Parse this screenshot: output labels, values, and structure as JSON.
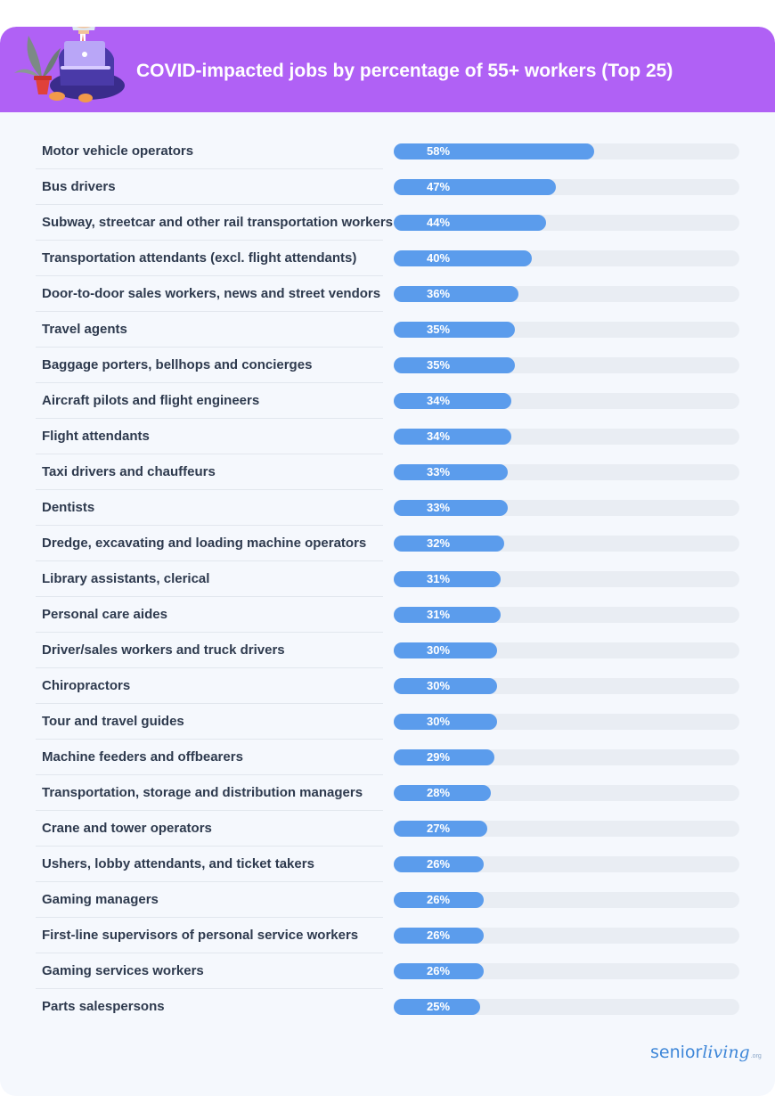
{
  "header": {
    "title": "COVID-impacted jobs by percentage of 55+ workers (Top 25)"
  },
  "chart_data": {
    "type": "bar",
    "orientation": "horizontal",
    "title": "COVID-impacted jobs by percentage of 55+ workers (Top 25)",
    "xlim": [
      0,
      100
    ],
    "categories": [
      "Motor vehicle operators",
      "Bus drivers",
      "Subway, streetcar and other rail transportation workers",
      "Transportation attendants (excl. flight attendants)",
      "Door-to-door sales workers, news and street vendors",
      "Travel agents",
      "Baggage porters, bellhops and concierges",
      "Aircraft pilots and flight engineers",
      "Flight attendants",
      "Taxi drivers and chauffeurs",
      "Dentists",
      "Dredge, excavating and loading machine operators",
      "Library assistants, clerical",
      "Personal care aides",
      "Driver/sales workers and truck drivers",
      "Chiropractors",
      "Tour and travel guides",
      "Machine feeders and offbearers",
      "Transportation, storage and distribution managers",
      "Crane and tower operators",
      "Ushers, lobby attendants, and ticket takers",
      "Gaming managers",
      "First-line supervisors of personal service workers",
      "Gaming services workers",
      "Parts salespersons"
    ],
    "values": [
      58,
      47,
      44,
      40,
      36,
      35,
      35,
      34,
      34,
      33,
      33,
      32,
      31,
      31,
      30,
      30,
      30,
      29,
      28,
      27,
      26,
      26,
      26,
      26,
      25
    ],
    "value_suffix": "%",
    "colors": {
      "bar": "#5b9cec",
      "track": "#e9edf3",
      "banner": "#b061f5",
      "background": "#f5f8fd"
    }
  },
  "brand": {
    "part1": "senior",
    "part2": "living",
    "part3": ".org"
  },
  "illustration": {
    "icon": "person-with-laptop-and-plant-icon"
  }
}
